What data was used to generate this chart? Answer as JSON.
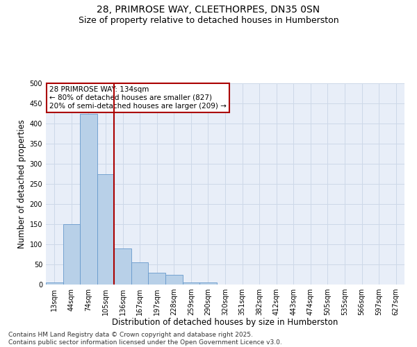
{
  "title_line1": "28, PRIMROSE WAY, CLEETHORPES, DN35 0SN",
  "title_line2": "Size of property relative to detached houses in Humberston",
  "xlabel": "Distribution of detached houses by size in Humberston",
  "ylabel": "Number of detached properties",
  "categories": [
    "13sqm",
    "44sqm",
    "74sqm",
    "105sqm",
    "136sqm",
    "167sqm",
    "197sqm",
    "228sqm",
    "259sqm",
    "290sqm",
    "320sqm",
    "351sqm",
    "382sqm",
    "412sqm",
    "443sqm",
    "474sqm",
    "505sqm",
    "535sqm",
    "566sqm",
    "597sqm",
    "627sqm"
  ],
  "values": [
    5,
    150,
    425,
    275,
    90,
    55,
    30,
    25,
    5,
    5,
    0,
    0,
    0,
    0,
    0,
    0,
    0,
    0,
    0,
    0,
    0
  ],
  "bar_color": "#b8d0e8",
  "bar_edge_color": "#6699cc",
  "property_line_x": 3.5,
  "property_line_color": "#aa0000",
  "annotation_text": "28 PRIMROSE WAY: 134sqm\n← 80% of detached houses are smaller (827)\n20% of semi-detached houses are larger (209) →",
  "annotation_box_edge_color": "#aa0000",
  "ylim": [
    0,
    500
  ],
  "yticks": [
    0,
    50,
    100,
    150,
    200,
    250,
    300,
    350,
    400,
    450,
    500
  ],
  "grid_color": "#cdd8e8",
  "bg_color": "#e8eef8",
  "footer_line1": "Contains HM Land Registry data © Crown copyright and database right 2025.",
  "footer_line2": "Contains public sector information licensed under the Open Government Licence v3.0.",
  "title_fontsize": 10,
  "subtitle_fontsize": 9,
  "axis_label_fontsize": 8.5,
  "tick_fontsize": 7,
  "annotation_fontsize": 7.5,
  "footer_fontsize": 6.5
}
